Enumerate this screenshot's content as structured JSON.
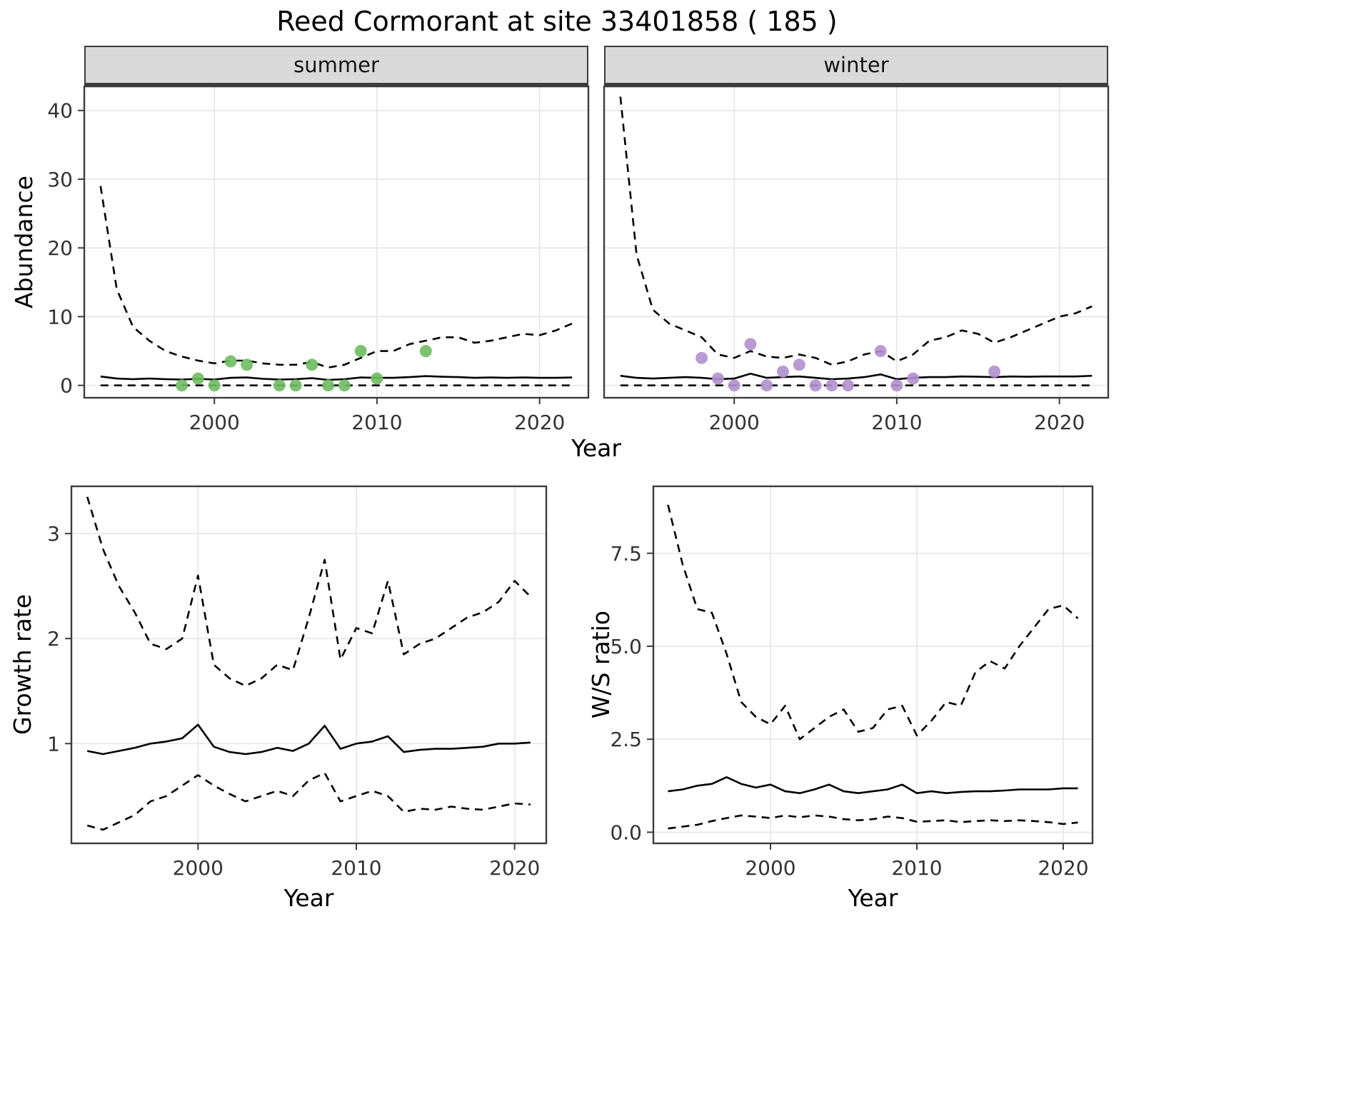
{
  "title": "Reed Cormorant at site 33401858 ( 185 )",
  "colors": {
    "summer_points": "#6dbc5f",
    "winter_points": "#b28fce",
    "line": "#000000",
    "grid": "#e6e6e6",
    "border": "#3c3c3c",
    "strip_bg": "#d9d9d9",
    "tick_text": "#333333"
  },
  "labels": {
    "abundance_ylabel": "Abundance",
    "top_xlabel": "Year",
    "growth_ylabel": "Growth rate",
    "growth_xlabel": "Year",
    "ws_ylabel": "W/S ratio",
    "ws_xlabel": "Year"
  },
  "chart_data": [
    {
      "id": "abundance-summer",
      "type": "line",
      "facet": "summer",
      "xlabel": "Year",
      "ylabel": "Abundance",
      "xlim": [
        1992,
        2023
      ],
      "ylim": [
        -1.8,
        43.5
      ],
      "xticks": [
        2000,
        2010,
        2020
      ],
      "yticks": [
        0,
        10,
        20,
        30,
        40
      ],
      "ytick_labels": [
        "0",
        "10",
        "20",
        "30",
        "40"
      ],
      "show_y_axis": true,
      "grid": "major",
      "legend": "none",
      "series": [
        {
          "name": "upper_95ci",
          "style": "dashed",
          "x": [
            1993,
            1994,
            1995,
            1996,
            1997,
            1998,
            1999,
            2000,
            2001,
            2002,
            2003,
            2004,
            2005,
            2006,
            2007,
            2008,
            2009,
            2010,
            2011,
            2012,
            2013,
            2014,
            2015,
            2016,
            2017,
            2018,
            2019,
            2020,
            2021,
            2022
          ],
          "y": [
            29,
            14,
            8.5,
            6.5,
            5,
            4.2,
            3.6,
            3.2,
            3.6,
            3.6,
            3.2,
            3,
            3,
            3.4,
            2.6,
            3,
            4,
            5,
            5,
            6,
            6.5,
            7,
            7,
            6.2,
            6.5,
            7,
            7.5,
            7.3,
            8,
            9
          ]
        },
        {
          "name": "fitted_median",
          "style": "solid",
          "x": [
            1993,
            1994,
            1995,
            1996,
            1997,
            1998,
            1999,
            2000,
            2001,
            2002,
            2003,
            2004,
            2005,
            2006,
            2007,
            2008,
            2009,
            2010,
            2011,
            2012,
            2013,
            2014,
            2015,
            2016,
            2017,
            2018,
            2019,
            2020,
            2021,
            2022
          ],
          "y": [
            1.3,
            1.0,
            0.9,
            1.0,
            0.9,
            0.85,
            0.95,
            0.85,
            1.1,
            1.15,
            0.95,
            0.85,
            0.9,
            1.05,
            0.8,
            0.9,
            1.15,
            1.1,
            1.1,
            1.2,
            1.35,
            1.25,
            1.2,
            1.1,
            1.15,
            1.1,
            1.15,
            1.1,
            1.1,
            1.15
          ]
        },
        {
          "name": "lower_95ci",
          "style": "dashed",
          "x": [
            1993,
            1994,
            1995,
            1996,
            1997,
            1998,
            1999,
            2000,
            2001,
            2002,
            2003,
            2004,
            2005,
            2006,
            2007,
            2008,
            2009,
            2010,
            2011,
            2012,
            2013,
            2014,
            2015,
            2016,
            2017,
            2018,
            2019,
            2020,
            2021,
            2022
          ],
          "y": [
            0,
            0,
            0,
            0,
            0,
            0,
            0,
            0,
            0,
            0,
            0,
            0,
            0,
            0,
            0,
            0,
            0,
            0,
            0,
            0,
            0,
            0,
            0,
            0,
            0,
            0,
            0,
            0,
            0,
            0
          ]
        }
      ],
      "points": {
        "name": "observed_counts_summer",
        "color": "#6dbc5f",
        "x": [
          1998,
          1999,
          2000,
          2001,
          2002,
          2004,
          2005,
          2006,
          2007,
          2008,
          2009,
          2010,
          2013
        ],
        "y": [
          0,
          1,
          0,
          3.5,
          3,
          0,
          0,
          3,
          0,
          0,
          5,
          1,
          5
        ]
      }
    },
    {
      "id": "abundance-winter",
      "type": "line",
      "facet": "winter",
      "xlabel": "Year",
      "ylabel": "Abundance",
      "xlim": [
        1992,
        2023
      ],
      "ylim": [
        -1.8,
        43.5
      ],
      "xticks": [
        2000,
        2010,
        2020
      ],
      "yticks": [
        0,
        10,
        20,
        30,
        40
      ],
      "ytick_labels": [
        "0",
        "10",
        "20",
        "30",
        "40"
      ],
      "show_y_axis": false,
      "grid": "major",
      "legend": "none",
      "series": [
        {
          "name": "upper_95ci",
          "style": "dashed",
          "x": [
            1993,
            1994,
            1995,
            1996,
            1997,
            1998,
            1999,
            2000,
            2001,
            2002,
            2003,
            2004,
            2005,
            2006,
            2007,
            2008,
            2009,
            2010,
            2011,
            2012,
            2013,
            2014,
            2015,
            2016,
            2017,
            2018,
            2019,
            2020,
            2021,
            2022
          ],
          "y": [
            42,
            19,
            11,
            9,
            8,
            7,
            4.5,
            4,
            5,
            4.2,
            4,
            4.5,
            4,
            3,
            3.5,
            4.5,
            5,
            3.5,
            4.5,
            6.5,
            7,
            8,
            7.5,
            6.2,
            7,
            8,
            9,
            10,
            10.5,
            11.5
          ]
        },
        {
          "name": "fitted_median",
          "style": "solid",
          "x": [
            1993,
            1994,
            1995,
            1996,
            1997,
            1998,
            1999,
            2000,
            2001,
            2002,
            2003,
            2004,
            2005,
            2006,
            2007,
            2008,
            2009,
            2010,
            2011,
            2012,
            2013,
            2014,
            2015,
            2016,
            2017,
            2018,
            2019,
            2020,
            2021,
            2022
          ],
          "y": [
            1.4,
            1.1,
            1.0,
            1.1,
            1.2,
            1.1,
            0.9,
            1.0,
            1.7,
            1.1,
            1.2,
            1.3,
            1.1,
            0.9,
            1.0,
            1.2,
            1.6,
            0.9,
            1.1,
            1.2,
            1.2,
            1.3,
            1.25,
            1.2,
            1.3,
            1.25,
            1.3,
            1.3,
            1.3,
            1.4
          ]
        },
        {
          "name": "lower_95ci",
          "style": "dashed",
          "x": [
            1993,
            1994,
            1995,
            1996,
            1997,
            1998,
            1999,
            2000,
            2001,
            2002,
            2003,
            2004,
            2005,
            2006,
            2007,
            2008,
            2009,
            2010,
            2011,
            2012,
            2013,
            2014,
            2015,
            2016,
            2017,
            2018,
            2019,
            2020,
            2021,
            2022
          ],
          "y": [
            0,
            0,
            0,
            0,
            0,
            0,
            0,
            0,
            0,
            0,
            0,
            0,
            0,
            0,
            0,
            0,
            0,
            0,
            0,
            0,
            0,
            0,
            0,
            0,
            0,
            0,
            0,
            0,
            0,
            0
          ]
        }
      ],
      "points": {
        "name": "observed_counts_winter",
        "color": "#b28fce",
        "x": [
          1998,
          1999,
          2000,
          2001,
          2002,
          2003,
          2004,
          2005,
          2006,
          2007,
          2009,
          2010,
          2011,
          2016
        ],
        "y": [
          4,
          1,
          0,
          6,
          0,
          2,
          3,
          0,
          0,
          0,
          5,
          0,
          1,
          2
        ]
      }
    },
    {
      "id": "growth-rate",
      "type": "line",
      "facet": "",
      "xlabel": "Year",
      "ylabel": "Growth rate",
      "xlim": [
        1992,
        2022
      ],
      "ylim": [
        0.05,
        3.45
      ],
      "xticks": [
        2000,
        2010,
        2020
      ],
      "yticks": [
        1,
        2,
        3
      ],
      "ytick_labels": [
        "1",
        "2",
        "3"
      ],
      "show_y_axis": true,
      "grid": "major",
      "legend": "none",
      "series": [
        {
          "name": "upper_95ci",
          "style": "dashed",
          "x": [
            1993,
            1994,
            1995,
            1996,
            1997,
            1998,
            1999,
            2000,
            2001,
            2002,
            2003,
            2004,
            2005,
            2006,
            2007,
            2008,
            2009,
            2010,
            2011,
            2012,
            2013,
            2014,
            2015,
            2016,
            2017,
            2018,
            2019,
            2020,
            2021
          ],
          "y": [
            3.35,
            2.85,
            2.5,
            2.25,
            1.95,
            1.9,
            2.0,
            2.6,
            1.75,
            1.62,
            1.55,
            1.62,
            1.75,
            1.7,
            2.2,
            2.75,
            1.8,
            2.1,
            2.05,
            2.55,
            1.85,
            1.95,
            2.0,
            2.1,
            2.2,
            2.25,
            2.35,
            2.55,
            2.4
          ]
        },
        {
          "name": "median",
          "style": "solid",
          "x": [
            1993,
            1994,
            1995,
            1996,
            1997,
            1998,
            1999,
            2000,
            2001,
            2002,
            2003,
            2004,
            2005,
            2006,
            2007,
            2008,
            2009,
            2010,
            2011,
            2012,
            2013,
            2014,
            2015,
            2016,
            2017,
            2018,
            2019,
            2020,
            2021
          ],
          "y": [
            0.93,
            0.9,
            0.93,
            0.96,
            1.0,
            1.02,
            1.05,
            1.18,
            0.97,
            0.92,
            0.9,
            0.92,
            0.96,
            0.93,
            1.0,
            1.17,
            0.95,
            1.0,
            1.02,
            1.07,
            0.92,
            0.94,
            0.95,
            0.95,
            0.96,
            0.97,
            1.0,
            1.0,
            1.01
          ]
        },
        {
          "name": "lower_95ci",
          "style": "dashed",
          "x": [
            1993,
            1994,
            1995,
            1996,
            1997,
            1998,
            1999,
            2000,
            2001,
            2002,
            2003,
            2004,
            2005,
            2006,
            2007,
            2008,
            2009,
            2010,
            2011,
            2012,
            2013,
            2014,
            2015,
            2016,
            2017,
            2018,
            2019,
            2020,
            2021
          ],
          "y": [
            0.22,
            0.18,
            0.25,
            0.32,
            0.45,
            0.5,
            0.6,
            0.7,
            0.6,
            0.52,
            0.45,
            0.5,
            0.55,
            0.5,
            0.65,
            0.72,
            0.45,
            0.5,
            0.55,
            0.5,
            0.35,
            0.38,
            0.37,
            0.4,
            0.38,
            0.37,
            0.4,
            0.43,
            0.42
          ]
        }
      ],
      "points": null
    },
    {
      "id": "ws-ratio",
      "type": "line",
      "facet": "",
      "xlabel": "Year",
      "ylabel": "W/S ratio",
      "xlim": [
        1992,
        2022
      ],
      "ylim": [
        -0.3,
        9.3
      ],
      "xticks": [
        2000,
        2010,
        2020
      ],
      "yticks": [
        0,
        2.5,
        5,
        7.5
      ],
      "ytick_labels": [
        "0.0",
        "2.5",
        "5.0",
        "7.5"
      ],
      "show_y_axis": true,
      "grid": "major",
      "legend": "none",
      "series": [
        {
          "name": "upper_95ci",
          "style": "dashed",
          "x": [
            1993,
            1994,
            1995,
            1996,
            1997,
            1998,
            1999,
            2000,
            2001,
            2002,
            2003,
            2004,
            2005,
            2006,
            2007,
            2008,
            2009,
            2010,
            2011,
            2012,
            2013,
            2014,
            2015,
            2016,
            2017,
            2018,
            2019,
            2020,
            2021
          ],
          "y": [
            8.8,
            7.2,
            6.0,
            5.9,
            4.8,
            3.5,
            3.1,
            2.9,
            3.4,
            2.5,
            2.8,
            3.1,
            3.3,
            2.7,
            2.8,
            3.3,
            3.4,
            2.6,
            3.0,
            3.5,
            3.4,
            4.3,
            4.6,
            4.4,
            5.0,
            5.5,
            6.0,
            6.1,
            5.75
          ]
        },
        {
          "name": "median",
          "style": "solid",
          "x": [
            1993,
            1994,
            1995,
            1996,
            1997,
            1998,
            1999,
            2000,
            2001,
            2002,
            2003,
            2004,
            2005,
            2006,
            2007,
            2008,
            2009,
            2010,
            2011,
            2012,
            2013,
            2014,
            2015,
            2016,
            2017,
            2018,
            2019,
            2020,
            2021
          ],
          "y": [
            1.1,
            1.15,
            1.25,
            1.3,
            1.48,
            1.3,
            1.2,
            1.28,
            1.1,
            1.05,
            1.15,
            1.28,
            1.1,
            1.05,
            1.1,
            1.15,
            1.28,
            1.05,
            1.1,
            1.05,
            1.08,
            1.1,
            1.1,
            1.12,
            1.15,
            1.15,
            1.15,
            1.18,
            1.18
          ]
        },
        {
          "name": "lower_95ci",
          "style": "dashed",
          "x": [
            1993,
            1994,
            1995,
            1996,
            1997,
            1998,
            1999,
            2000,
            2001,
            2002,
            2003,
            2004,
            2005,
            2006,
            2007,
            2008,
            2009,
            2010,
            2011,
            2012,
            2013,
            2014,
            2015,
            2016,
            2017,
            2018,
            2019,
            2020,
            2021
          ],
          "y": [
            0.1,
            0.15,
            0.2,
            0.3,
            0.38,
            0.45,
            0.42,
            0.38,
            0.45,
            0.4,
            0.45,
            0.42,
            0.35,
            0.32,
            0.35,
            0.42,
            0.38,
            0.28,
            0.3,
            0.32,
            0.27,
            0.3,
            0.32,
            0.3,
            0.32,
            0.3,
            0.27,
            0.22,
            0.26
          ]
        }
      ],
      "points": null
    }
  ]
}
